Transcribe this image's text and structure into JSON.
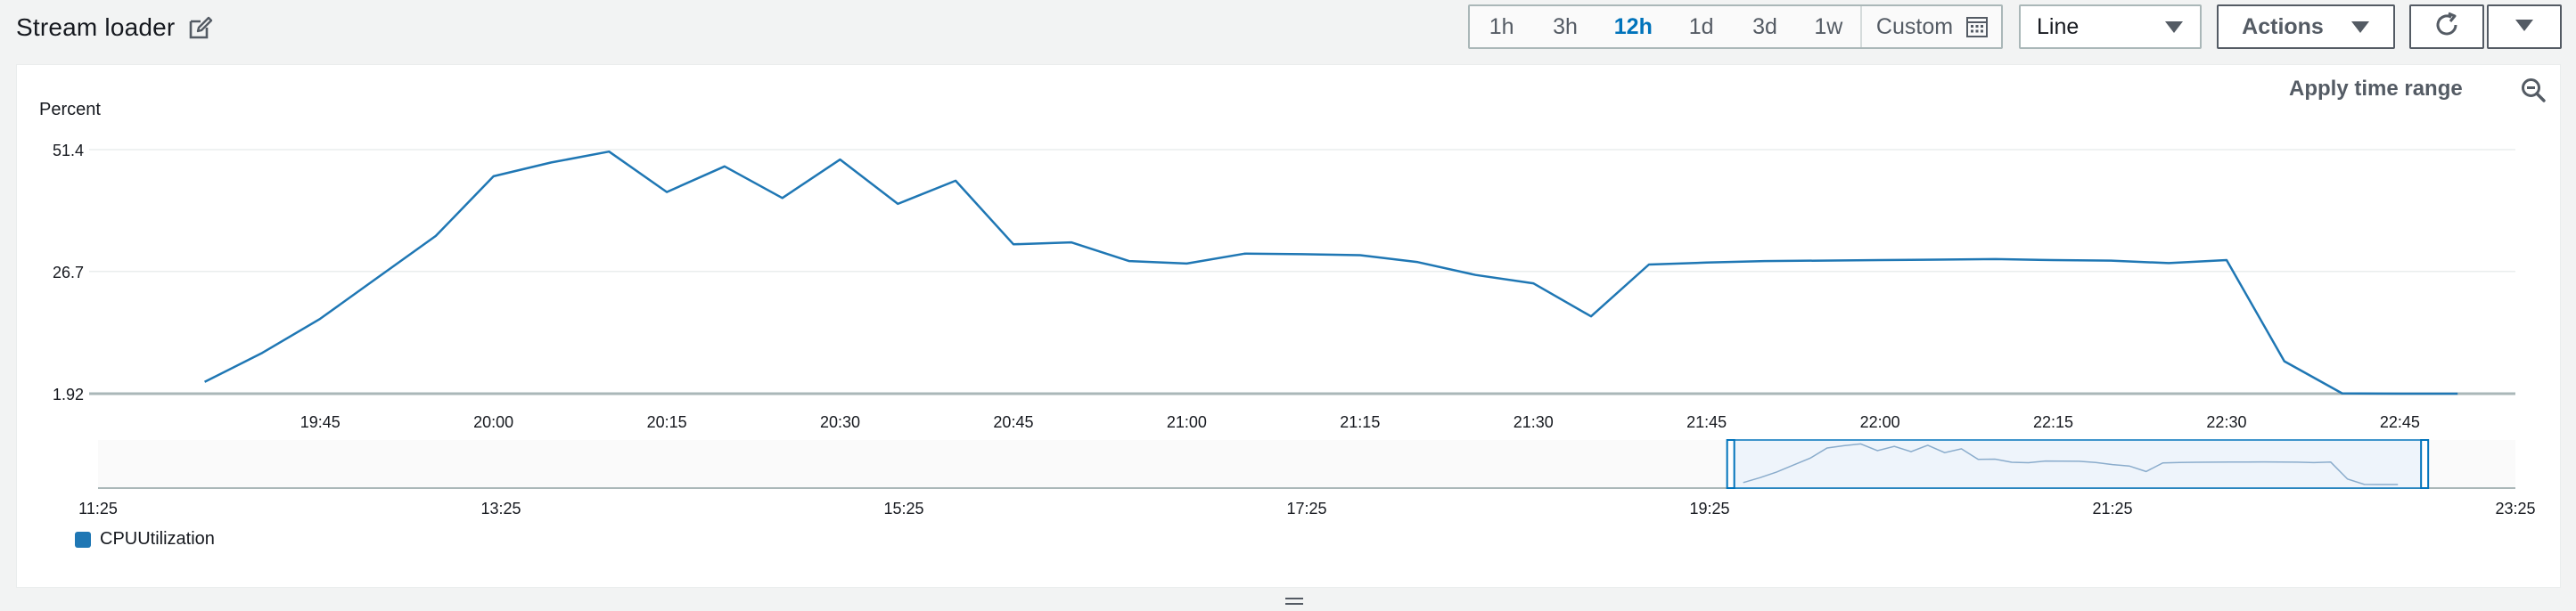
{
  "header": {
    "title": "Stream loader",
    "edit_icon": "edit-icon"
  },
  "time_range": {
    "options": [
      "1h",
      "3h",
      "12h",
      "1d",
      "3d",
      "1w"
    ],
    "selected": "12h",
    "custom_label": "Custom",
    "custom_icon": "calendar-icon"
  },
  "chart_type_select": {
    "value": "Line"
  },
  "toolbar": {
    "actions_label": "Actions",
    "refresh_icon": "refresh-icon",
    "more_icon": "chevron-down-icon"
  },
  "panel": {
    "apply_time_range_label": "Apply time range",
    "zoom_icon": "zoom-out-icon"
  },
  "colors": {
    "line": "#1f77b4",
    "selected_range": "#0073bb",
    "background": "#f2f3f3"
  },
  "chart_data": {
    "type": "line",
    "ylabel": "Percent",
    "xlabel": "",
    "ylim": [
      1.92,
      51.4
    ],
    "y_ticks": [
      "1.92",
      "26.7",
      "51.4"
    ],
    "x_ticks": [
      "19:45",
      "20:00",
      "20:15",
      "20:30",
      "20:45",
      "21:00",
      "21:15",
      "21:30",
      "21:45",
      "22:00",
      "22:15",
      "22:30",
      "22:45"
    ],
    "series": [
      {
        "name": "CPUUtilization",
        "x": [
          "19:35",
          "19:40",
          "19:45",
          "19:50",
          "19:55",
          "20:00",
          "20:05",
          "20:10",
          "20:15",
          "20:20",
          "20:25",
          "20:30",
          "20:35",
          "20:40",
          "20:45",
          "20:50",
          "20:55",
          "21:00",
          "21:05",
          "21:10",
          "21:15",
          "21:20",
          "21:25",
          "21:30",
          "21:35",
          "21:40",
          "21:45",
          "21:50",
          "21:55",
          "22:00",
          "22:05",
          "22:10",
          "22:15",
          "22:20",
          "22:25",
          "22:30",
          "22:35",
          "22:40",
          "22:45",
          "22:50"
        ],
        "values": [
          4.3,
          10.2,
          17.1,
          25.5,
          33.9,
          46.0,
          48.8,
          51.0,
          42.8,
          48.0,
          41.6,
          49.4,
          40.4,
          45.1,
          32.2,
          32.6,
          28.8,
          28.3,
          30.3,
          30.2,
          30.0,
          28.6,
          26.0,
          24.3,
          17.6,
          28.1,
          28.5,
          28.8,
          28.9,
          29.0,
          29.1,
          29.2,
          29.0,
          28.9,
          28.4,
          29.0,
          8.5,
          2.0,
          1.92,
          1.92
        ]
      }
    ],
    "overview": {
      "x_ticks": [
        "11:25",
        "13:25",
        "15:25",
        "17:25",
        "19:25",
        "21:25",
        "23:25"
      ],
      "selection": [
        "19:35",
        "22:50"
      ]
    },
    "legend": [
      "CPUUtilization"
    ],
    "legend_position": "bottom-left",
    "grid": true
  }
}
